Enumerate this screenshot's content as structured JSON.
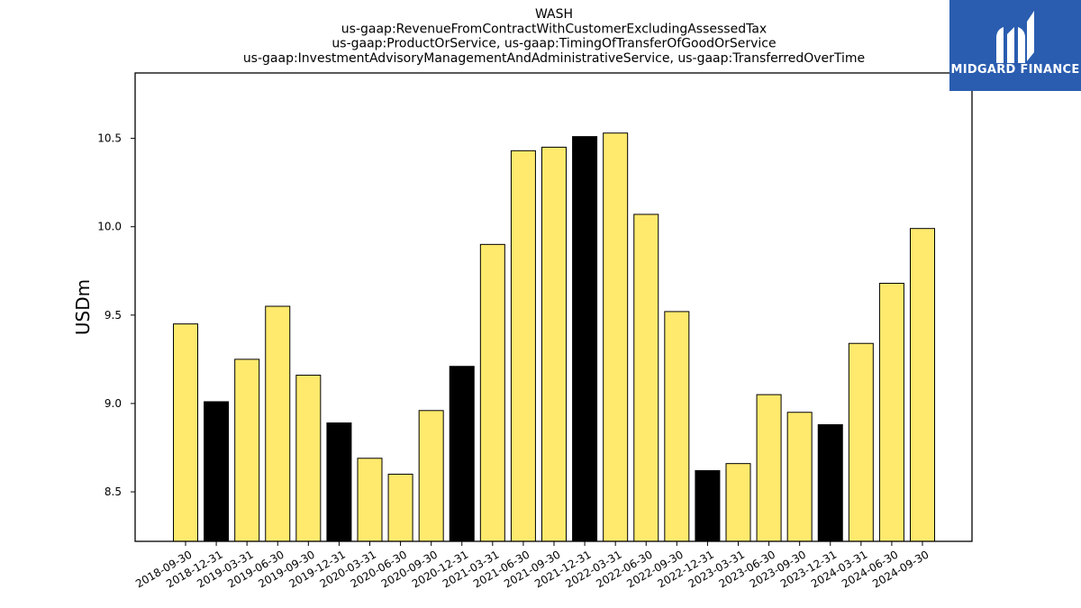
{
  "chart_data": {
    "type": "bar",
    "title_lines": [
      "WASH",
      "us-gaap:RevenueFromContractWithCustomerExcludingAssessedTax",
      "us-gaap:ProductOrService, us-gaap:TimingOfTransferOfGoodOrService",
      "us-gaap:InvestmentAdvisoryManagementAndAdministrativeService, us-gaap:TransferredOverTime"
    ],
    "xlabel": "",
    "ylabel": "USDm",
    "ylim": [
      8.22,
      10.87
    ],
    "yticks": [
      8.5,
      9.0,
      9.5,
      10.0,
      10.5
    ],
    "ytick_labels": [
      "8.5",
      "9.0",
      "9.5",
      "10.0",
      "10.5"
    ],
    "categories": [
      "2018-09-30",
      "2018-12-31",
      "2019-03-31",
      "2019-06-30",
      "2019-09-30",
      "2019-12-31",
      "2020-03-31",
      "2020-06-30",
      "2020-09-30",
      "2020-12-31",
      "2021-03-31",
      "2021-06-30",
      "2021-09-30",
      "2021-12-31",
      "2022-03-31",
      "2022-06-30",
      "2022-09-30",
      "2022-12-31",
      "2023-03-31",
      "2023-06-30",
      "2023-09-30",
      "2023-12-31",
      "2024-03-31",
      "2024-06-30",
      "2024-09-30"
    ],
    "values": [
      9.45,
      9.01,
      9.25,
      9.55,
      9.16,
      8.89,
      8.69,
      8.6,
      8.96,
      9.21,
      9.9,
      10.43,
      10.45,
      10.51,
      10.53,
      10.07,
      9.52,
      8.62,
      8.66,
      9.05,
      8.95,
      8.88,
      9.34,
      9.68,
      9.99
    ],
    "bar_colors": [
      "#FFEA6E",
      "#000000",
      "#FFEA6E",
      "#FFEA6E",
      "#FFEA6E",
      "#000000",
      "#FFEA6E",
      "#FFEA6E",
      "#FFEA6E",
      "#000000",
      "#FFEA6E",
      "#FFEA6E",
      "#FFEA6E",
      "#000000",
      "#FFEA6E",
      "#FFEA6E",
      "#FFEA6E",
      "#000000",
      "#FFEA6E",
      "#FFEA6E",
      "#FFEA6E",
      "#000000",
      "#FFEA6E",
      "#FFEA6E",
      "#FFEA6E"
    ],
    "grid": false,
    "legend": "none"
  },
  "logo": {
    "text": "MIDGARD FINANCE",
    "background": "#2A5DB0",
    "foreground": "#FFFFFF"
  }
}
